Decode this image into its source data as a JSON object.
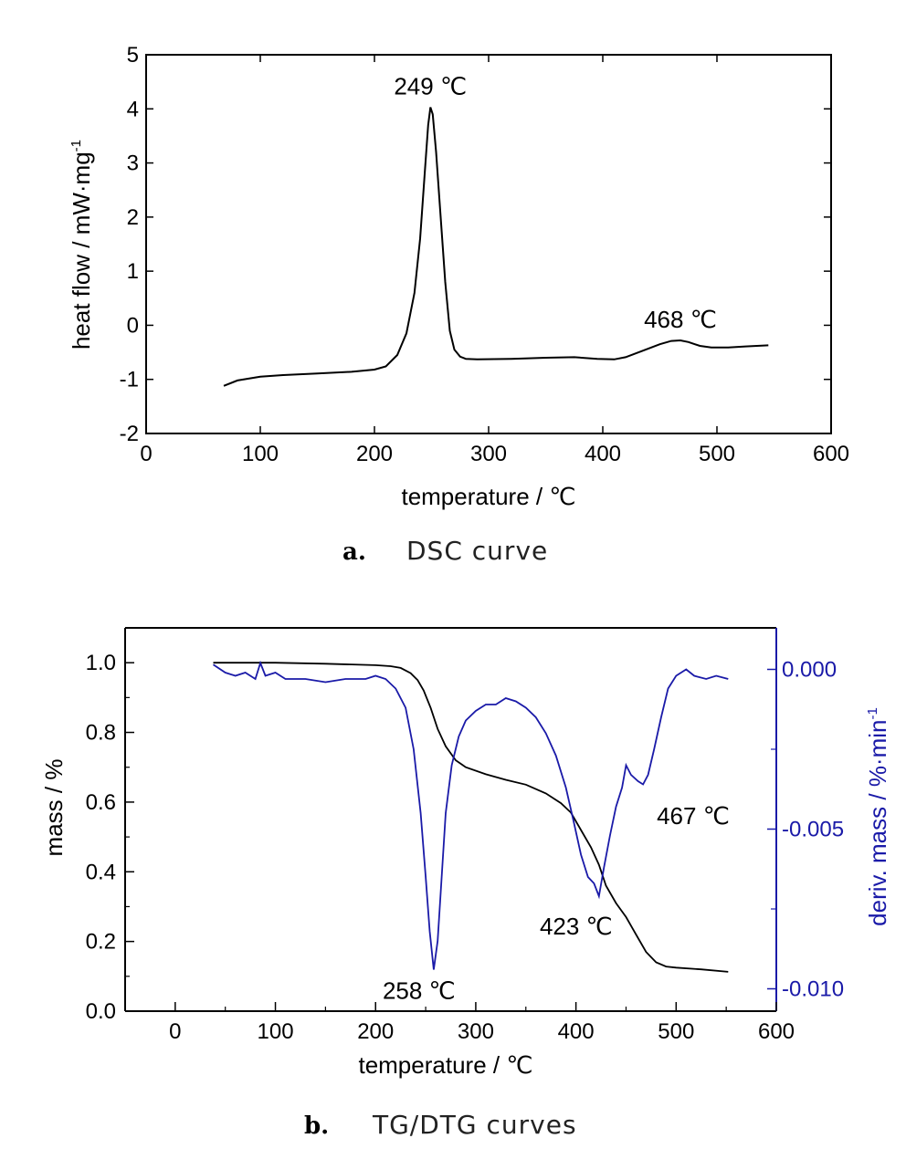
{
  "figures": [
    {
      "caption_letter": "a.",
      "caption_text": "DSC curve"
    },
    {
      "caption_letter": "b.",
      "caption_text": "TG/DTG curves"
    }
  ],
  "chart_data": [
    {
      "type": "line",
      "xlabel": "temperature / ℃",
      "ylabel": "heat flow / mW·mg",
      "ylabel_superscript": "-1",
      "xlim": [
        0,
        600
      ],
      "ylim": [
        -2,
        5
      ],
      "x_ticks": [
        "0",
        "100",
        "200",
        "300",
        "400",
        "500",
        "600"
      ],
      "y_ticks": [
        "-2",
        "-1",
        "0",
        "1",
        "2",
        "3",
        "4",
        "5"
      ],
      "annotations": [
        {
          "text": "249 ℃",
          "x": 249,
          "y": 4.03
        },
        {
          "text": "468 ℃",
          "x": 468,
          "y": -0.28
        }
      ],
      "series": [
        {
          "color": "#000000",
          "points": [
            [
              68,
              -1.12
            ],
            [
              80,
              -1.02
            ],
            [
              100,
              -0.95
            ],
            [
              120,
              -0.92
            ],
            [
              150,
              -0.89
            ],
            [
              180,
              -0.86
            ],
            [
              200,
              -0.82
            ],
            [
              210,
              -0.76
            ],
            [
              220,
              -0.55
            ],
            [
              228,
              -0.15
            ],
            [
              235,
              0.6
            ],
            [
              240,
              1.6
            ],
            [
              244,
              2.8
            ],
            [
              247,
              3.7
            ],
            [
              249,
              4.03
            ],
            [
              251,
              3.9
            ],
            [
              254,
              3.2
            ],
            [
              258,
              2.0
            ],
            [
              262,
              0.8
            ],
            [
              266,
              -0.1
            ],
            [
              270,
              -0.45
            ],
            [
              275,
              -0.58
            ],
            [
              280,
              -0.62
            ],
            [
              290,
              -0.63
            ],
            [
              320,
              -0.62
            ],
            [
              350,
              -0.6
            ],
            [
              375,
              -0.59
            ],
            [
              395,
              -0.62
            ],
            [
              410,
              -0.63
            ],
            [
              420,
              -0.59
            ],
            [
              435,
              -0.47
            ],
            [
              450,
              -0.35
            ],
            [
              460,
              -0.29
            ],
            [
              468,
              -0.28
            ],
            [
              475,
              -0.31
            ],
            [
              485,
              -0.38
            ],
            [
              495,
              -0.41
            ],
            [
              510,
              -0.41
            ],
            [
              525,
              -0.39
            ],
            [
              545,
              -0.37
            ]
          ]
        }
      ]
    },
    {
      "type": "line",
      "xlabel": "temperature / ℃",
      "ylabel": "mass / %",
      "y2label": "deriv. mass / %·min",
      "y2label_superscript": "-1",
      "xlim": [
        -50,
        600
      ],
      "ylim": [
        0,
        1.1
      ],
      "y2lim": [
        -0.0107,
        0.0013
      ],
      "x_ticks": [
        "0",
        "100",
        "200",
        "300",
        "400",
        "500",
        "600"
      ],
      "y_ticks": [
        "0.0",
        "0.2",
        "0.4",
        "0.6",
        "0.8",
        "1.0"
      ],
      "y2_ticks": [
        "-0.010",
        "-0.005",
        "0.000"
      ],
      "annotations": [
        {
          "text": "258 ℃",
          "x": 258,
          "axis": "y2",
          "y": -0.0094
        },
        {
          "text": "423 ℃",
          "x": 423,
          "axis": "y2",
          "y": -0.0071
        },
        {
          "text": "467 ℃",
          "x": 467,
          "axis": "y2",
          "y": -0.0037
        }
      ],
      "series": [
        {
          "axis": "y",
          "color": "#000000",
          "points": [
            [
              38,
              1.0
            ],
            [
              100,
              1.0
            ],
            [
              150,
              0.997
            ],
            [
              200,
              0.993
            ],
            [
              215,
              0.99
            ],
            [
              225,
              0.985
            ],
            [
              235,
              0.97
            ],
            [
              242,
              0.95
            ],
            [
              248,
              0.92
            ],
            [
              255,
              0.87
            ],
            [
              262,
              0.81
            ],
            [
              270,
              0.76
            ],
            [
              280,
              0.72
            ],
            [
              290,
              0.7
            ],
            [
              310,
              0.68
            ],
            [
              330,
              0.664
            ],
            [
              350,
              0.65
            ],
            [
              370,
              0.625
            ],
            [
              385,
              0.597
            ],
            [
              395,
              0.57
            ],
            [
              405,
              0.52
            ],
            [
              415,
              0.47
            ],
            [
              423,
              0.42
            ],
            [
              430,
              0.36
            ],
            [
              440,
              0.31
            ],
            [
              450,
              0.27
            ],
            [
              460,
              0.22
            ],
            [
              470,
              0.17
            ],
            [
              480,
              0.14
            ],
            [
              490,
              0.128
            ],
            [
              500,
              0.125
            ],
            [
              525,
              0.12
            ],
            [
              552,
              0.113
            ]
          ]
        },
        {
          "axis": "y2",
          "color": "#1a1aa8",
          "points": [
            [
              38,
              0.00015
            ],
            [
              50,
              -0.0001
            ],
            [
              60,
              -0.0002
            ],
            [
              70,
              -0.0001
            ],
            [
              80,
              -0.0003
            ],
            [
              85,
              0.0002
            ],
            [
              90,
              -0.0002
            ],
            [
              100,
              -0.0001
            ],
            [
              110,
              -0.0003
            ],
            [
              130,
              -0.0003
            ],
            [
              150,
              -0.0004
            ],
            [
              170,
              -0.0003
            ],
            [
              190,
              -0.0003
            ],
            [
              200,
              -0.0002
            ],
            [
              210,
              -0.0003
            ],
            [
              220,
              -0.0006
            ],
            [
              230,
              -0.0012
            ],
            [
              238,
              -0.0025
            ],
            [
              245,
              -0.0045
            ],
            [
              250,
              -0.0065
            ],
            [
              254,
              -0.0082
            ],
            [
              258,
              -0.0094
            ],
            [
              262,
              -0.0085
            ],
            [
              266,
              -0.0065
            ],
            [
              270,
              -0.0045
            ],
            [
              276,
              -0.003
            ],
            [
              283,
              -0.0021
            ],
            [
              290,
              -0.0016
            ],
            [
              300,
              -0.0013
            ],
            [
              310,
              -0.0011
            ],
            [
              320,
              -0.0011
            ],
            [
              330,
              -0.0009
            ],
            [
              340,
              -0.001
            ],
            [
              350,
              -0.0012
            ],
            [
              360,
              -0.0015
            ],
            [
              370,
              -0.002
            ],
            [
              380,
              -0.0027
            ],
            [
              390,
              -0.0037
            ],
            [
              398,
              -0.0048
            ],
            [
              405,
              -0.0058
            ],
            [
              412,
              -0.0065
            ],
            [
              418,
              -0.0067
            ],
            [
              423,
              -0.0071
            ],
            [
              428,
              -0.0062
            ],
            [
              434,
              -0.0052
            ],
            [
              440,
              -0.0043
            ],
            [
              446,
              -0.0037
            ],
            [
              450,
              -0.003
            ],
            [
              455,
              -0.0033
            ],
            [
              462,
              -0.0035
            ],
            [
              467,
              -0.0036
            ],
            [
              472,
              -0.0033
            ],
            [
              478,
              -0.0025
            ],
            [
              485,
              -0.0015
            ],
            [
              492,
              -0.0006
            ],
            [
              500,
              -0.0002
            ],
            [
              510,
              0.0
            ],
            [
              518,
              -0.0002
            ],
            [
              530,
              -0.0003
            ],
            [
              540,
              -0.0002
            ],
            [
              552,
              -0.0003
            ]
          ]
        }
      ]
    }
  ]
}
